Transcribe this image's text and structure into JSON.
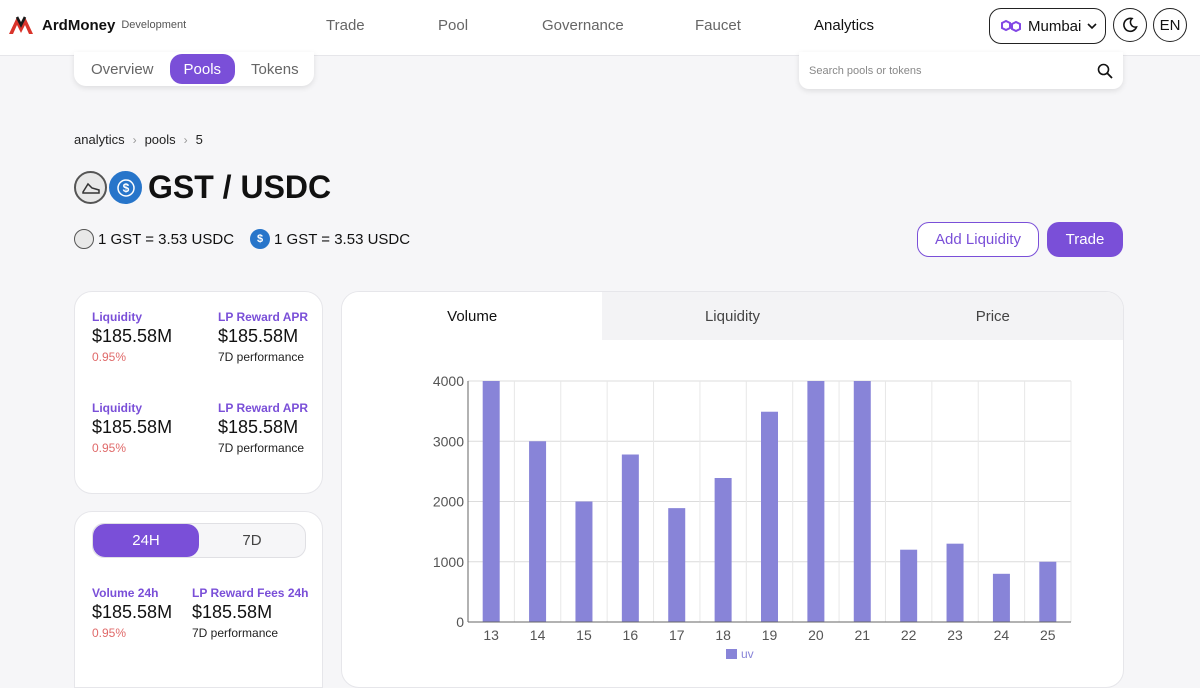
{
  "header": {
    "brand": "ArdMoney",
    "brand_sub": "Development",
    "nav": [
      "Trade",
      "Pool",
      "Governance",
      "Faucet",
      "Analytics"
    ],
    "active_nav": "Analytics",
    "network": "Mumbai",
    "language": "EN"
  },
  "subtabs": [
    "Overview",
    "Pools",
    "Tokens"
  ],
  "active_subtab": "Pools",
  "search": {
    "placeholder": "Search pools or tokens"
  },
  "breadcrumb": [
    "analytics",
    "pools",
    "5"
  ],
  "pool": {
    "title": "GST / USDC",
    "rate_1": "1 GST = 3.53 USDC",
    "rate_2": "1 GST = 3.53 USDC"
  },
  "actions": {
    "add_liquidity": "Add Liquidity",
    "trade": "Trade"
  },
  "stats_top": [
    {
      "label": "Liquidity",
      "value": "$185.58M",
      "change": "0.95%"
    },
    {
      "label": "LP Reward APR",
      "value": "$185.58M",
      "note": "7D performance"
    },
    {
      "label": "Liquidity",
      "value": "$185.58M",
      "change": "0.95%"
    },
    {
      "label": "LP Reward APR",
      "value": "$185.58M",
      "note": "7D performance"
    }
  ],
  "period": {
    "options": [
      "24H",
      "7D"
    ],
    "active": "24H"
  },
  "stats_bottom": [
    {
      "label": "Volume 24h",
      "value": "$185.58M",
      "change": "0.95%"
    },
    {
      "label": "LP Reward Fees 24h",
      "value": "$185.58M",
      "note": "7D performance"
    }
  ],
  "chart_tabs": [
    "Volume",
    "Liquidity",
    "Price"
  ],
  "active_chart_tab": "Volume",
  "colors": {
    "accent": "#7a4fd8",
    "bar": "#8884d8",
    "negative": "#e06a6a"
  },
  "chart_data": {
    "type": "bar",
    "categories": [
      "13",
      "14",
      "15",
      "16",
      "17",
      "18",
      "19",
      "20",
      "21",
      "22",
      "23",
      "24",
      "25"
    ],
    "series": [
      {
        "name": "uv",
        "values": [
          4000,
          3000,
          2000,
          2780,
          1890,
          2390,
          3490,
          4000,
          4000,
          1200,
          1300,
          800,
          1000
        ]
      }
    ],
    "ylim": [
      0,
      4000
    ],
    "yticks": [
      0,
      1000,
      2000,
      3000,
      4000
    ],
    "grid": true,
    "legend": "bottom-center"
  }
}
